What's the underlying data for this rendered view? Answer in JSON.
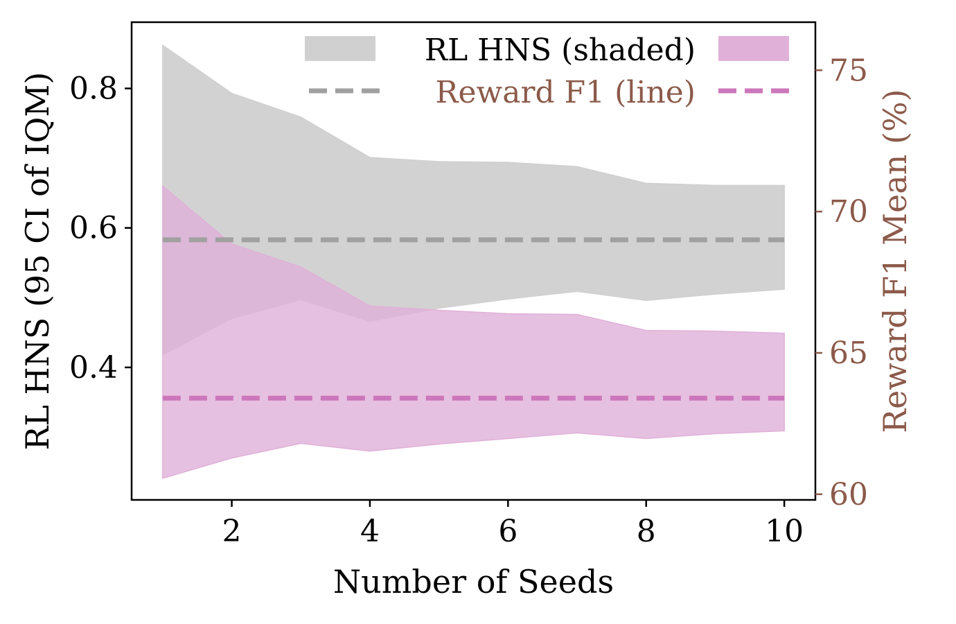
{
  "chart_data": {
    "type": "area",
    "x": [
      1,
      2,
      3,
      4,
      5,
      6,
      7,
      8,
      9,
      10
    ],
    "xlabel": "Number of Seeds",
    "ylabel_left": "RL HNS (95 CI of IQM)",
    "ylabel_right": "Reward F1 Mean (%)",
    "xlim": [
      0.55,
      10.45
    ],
    "ylim_left": [
      0.21,
      0.895
    ],
    "ylim_right": [
      59.8,
      76.7
    ],
    "xticks": [
      "2",
      "4",
      "6",
      "8",
      "10"
    ],
    "yticks_left": [
      "0.4",
      "0.6",
      "0.8"
    ],
    "yticks_right": [
      "60",
      "65",
      "70",
      "75"
    ],
    "grid": false,
    "legend_placement": "top-right",
    "series": [
      {
        "name": "RL HNS (shaded)",
        "kind": "band",
        "axis": "left",
        "color": "#d0d0d0",
        "lower": [
          0.418,
          0.47,
          0.497,
          0.466,
          0.485,
          0.498,
          0.509,
          0.496,
          0.505,
          0.512
        ],
        "upper": [
          0.862,
          0.793,
          0.759,
          0.701,
          0.695,
          0.694,
          0.688,
          0.664,
          0.661,
          0.661
        ]
      },
      {
        "kind": "band",
        "axis": "left",
        "color": "#e0b0d8",
        "lower": [
          0.241,
          0.27,
          0.291,
          0.28,
          0.29,
          0.298,
          0.306,
          0.298,
          0.305,
          0.309
        ],
        "upper": [
          0.66,
          0.577,
          0.544,
          0.488,
          0.482,
          0.477,
          0.476,
          0.453,
          0.452,
          0.449
        ]
      },
      {
        "name": "Reward F1 (line)",
        "kind": "line",
        "axis": "right",
        "color": "#a0a0a0",
        "values": [
          69.0,
          69.0,
          69.0,
          69.0,
          69.0,
          69.0,
          69.0,
          69.0,
          69.0,
          69.0
        ]
      },
      {
        "kind": "line",
        "axis": "right",
        "color": "#cc77bb",
        "values": [
          63.4,
          63.4,
          63.4,
          63.4,
          63.4,
          63.4,
          63.4,
          63.4,
          63.4,
          63.4
        ]
      }
    ],
    "colors": {
      "right_axis": "#8c5a4a",
      "gray_band": "#d0d0d0",
      "pink_band": "#e0b0d8",
      "gray_line": "#a0a0a0",
      "pink_line": "#cc77bb"
    }
  }
}
